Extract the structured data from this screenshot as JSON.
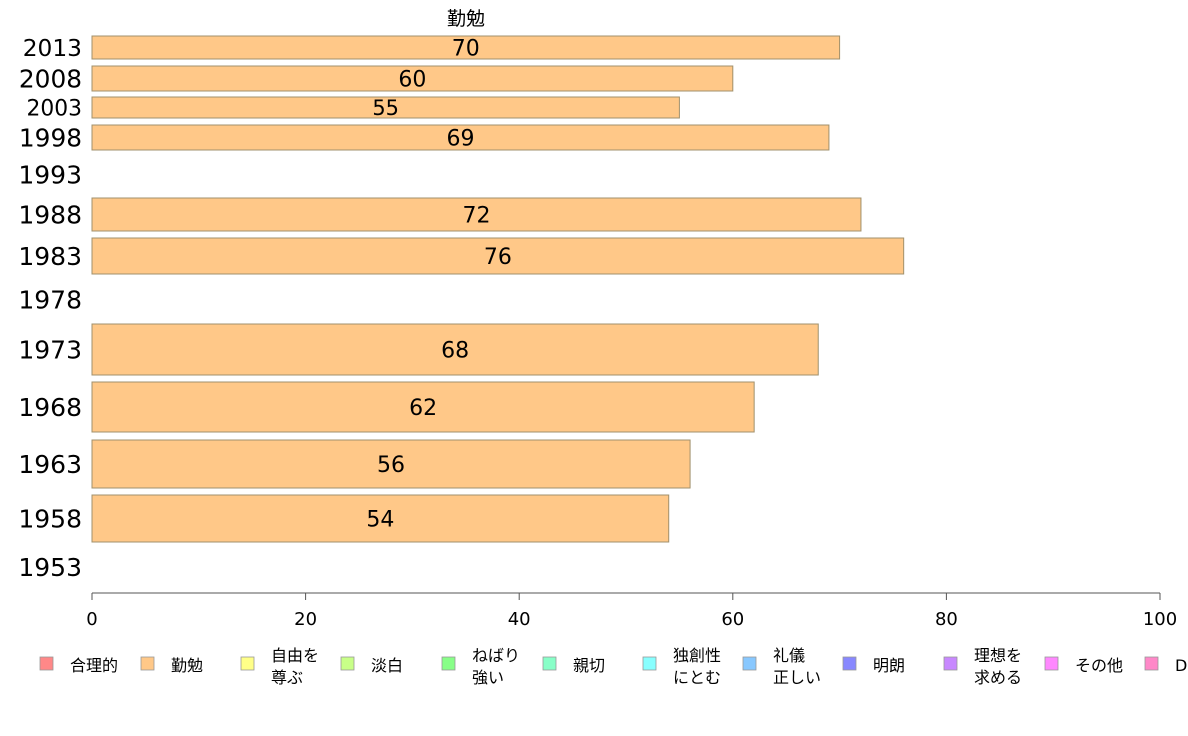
{
  "chart_data": {
    "type": "bar",
    "orientation": "horizontal",
    "title": "勤勉",
    "categories": [
      "2013",
      "2008",
      "2003",
      "1998",
      "1993",
      "1988",
      "1983",
      "1978",
      "1973",
      "1968",
      "1963",
      "1958",
      "1953"
    ],
    "series": [
      {
        "name": "勤勉",
        "color": "#ffc888",
        "values": [
          70,
          60,
          55,
          69,
          null,
          72,
          76,
          null,
          68,
          62,
          56,
          54,
          null
        ],
        "data_labels": [
          "70",
          "60",
          "55",
          "69",
          "",
          "72",
          "76",
          "",
          "68",
          "62",
          "56",
          "54",
          ""
        ]
      }
    ],
    "xlim": [
      0,
      100
    ],
    "x_ticks": [
      "0",
      "20",
      "40",
      "60",
      "80",
      "100"
    ],
    "grid": false,
    "legend": {
      "placement": "bottom",
      "entries": [
        {
          "lines": [
            "合理的"
          ],
          "color": "#ff8888"
        },
        {
          "lines": [
            "勤勉"
          ],
          "color": "#ffc888"
        },
        {
          "lines": [
            "自由を",
            "尊ぶ"
          ],
          "color": "#ffff88"
        },
        {
          "lines": [
            "淡白"
          ],
          "color": "#c8ff88"
        },
        {
          "lines": [
            "ねばり",
            "強い"
          ],
          "color": "#88ff88"
        },
        {
          "lines": [
            "親切"
          ],
          "color": "#88ffc8"
        },
        {
          "lines": [
            "独創性",
            "にとむ"
          ],
          "color": "#88ffff"
        },
        {
          "lines": [
            "礼儀",
            "正しい"
          ],
          "color": "#88c8ff"
        },
        {
          "lines": [
            "明朗"
          ],
          "color": "#8888ff"
        },
        {
          "lines": [
            "理想を",
            "求める"
          ],
          "color": "#c888ff"
        },
        {
          "lines": [
            "その他"
          ],
          "color": "#ff88ff"
        },
        {
          "lines": [
            "D"
          ],
          "color": "#ff88c8"
        }
      ]
    }
  }
}
